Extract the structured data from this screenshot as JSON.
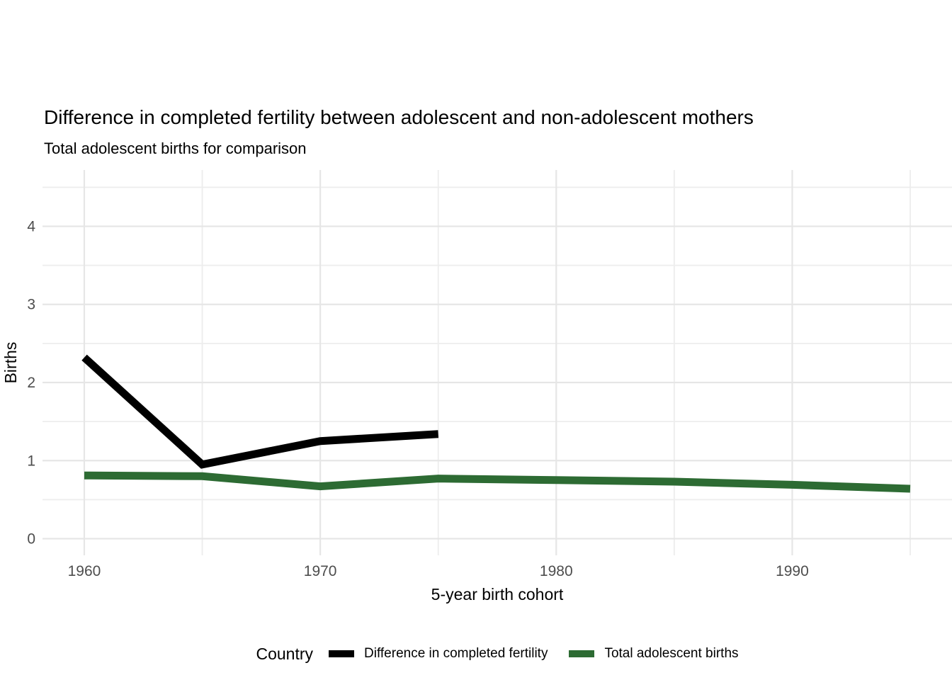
{
  "header": {
    "title": "Difference in completed fertility between adolescent and non-adolescent mothers",
    "subtitle": "Total adolescent births for comparison"
  },
  "axes": {
    "x_title": "5-year birth cohort",
    "y_title": "Births",
    "x_tick_labels": [
      "1960",
      "1970",
      "1980",
      "1990"
    ],
    "y_tick_labels": [
      "0",
      "1",
      "2",
      "3",
      "4"
    ],
    "tick_label_color": "#4d4d4d"
  },
  "legend": {
    "title": "Country",
    "items": [
      {
        "label": "Difference in completed fertility",
        "color": "#000000"
      },
      {
        "label": "Total adolescent births",
        "color": "#2d6b33"
      }
    ]
  },
  "colors": {
    "background": "#ffffff",
    "grid_major": "#e6e6e6",
    "grid_minor": "#ededed",
    "series_difference": "#000000",
    "series_total": "#2d6b33"
  },
  "chart_data": {
    "type": "line",
    "title": "Difference in completed fertility between adolescent and non-adolescent mothers",
    "subtitle": "Total adolescent births for comparison",
    "xlabel": "5-year birth cohort",
    "ylabel": "Births",
    "legend_title": "Country",
    "legend_position": "bottom",
    "grid": true,
    "xlim": [
      1958.23,
      1996.77
    ],
    "ylim": [
      -0.213,
      4.721
    ],
    "x_ticks": [
      1960,
      1970,
      1980,
      1990
    ],
    "y_ticks": [
      0,
      1,
      2,
      3,
      4
    ],
    "x_gridlines": [
      1960,
      1965,
      1970,
      1975,
      1980,
      1985,
      1990,
      1995
    ],
    "y_gridlines_minor": [
      0.5,
      1.5,
      2.5,
      3.5,
      4.5
    ],
    "series": [
      {
        "name": "Difference in completed fertility",
        "color": "#000000",
        "x": [
          1960,
          1965,
          1970,
          1975
        ],
        "values": [
          2.32,
          0.95,
          1.25,
          1.34
        ]
      },
      {
        "name": "Total adolescent births",
        "color": "#2d6b33",
        "x": [
          1960,
          1965,
          1970,
          1975,
          1980,
          1985,
          1990,
          1995
        ],
        "values": [
          0.81,
          0.8,
          0.67,
          0.77,
          0.75,
          0.73,
          0.69,
          0.64
        ]
      }
    ]
  }
}
